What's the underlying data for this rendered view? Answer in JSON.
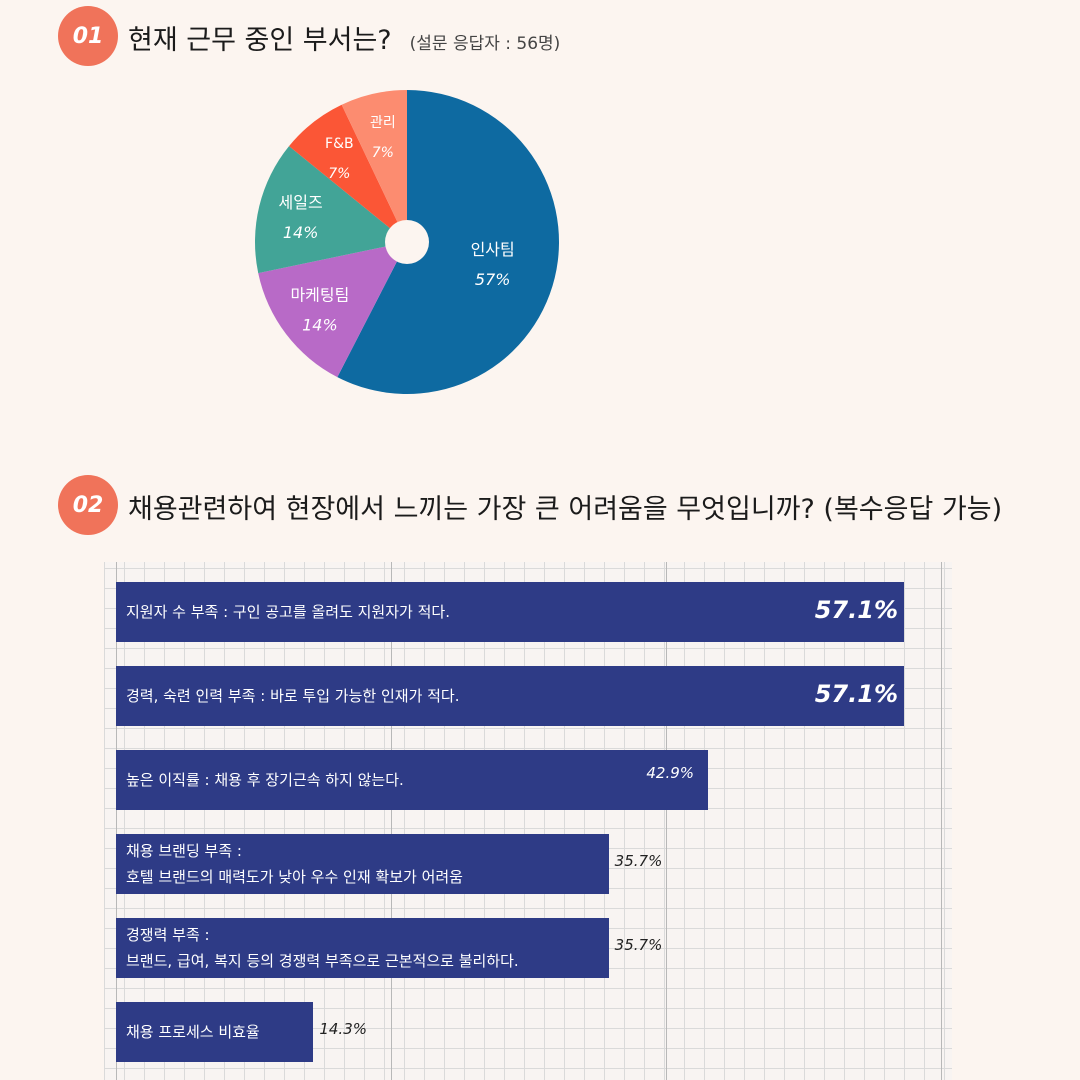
{
  "q1": {
    "badge": "01",
    "title": "현재 근무 중인 부서는?",
    "note": "(설문 응답자 : 56명)"
  },
  "q2": {
    "badge": "02",
    "title": "채용관련하여 현장에서 느끼는 가장 큰 어려움을 무엇입니까? (복수응답 가능)"
  },
  "chart_data": [
    {
      "type": "pie",
      "title": "",
      "slices": [
        {
          "label": "인사팀",
          "value": 57,
          "value_label": "57%",
          "color": "#0e6aa1"
        },
        {
          "label": "마케팅팀",
          "value": 14,
          "value_label": "14%",
          "color": "#b86ac7"
        },
        {
          "label": "세일즈",
          "value": 14,
          "value_label": "14%",
          "color": "#42a497"
        },
        {
          "label": "F&B",
          "value": 7,
          "value_label": "7%",
          "color": "#fb5636"
        },
        {
          "label": "관리",
          "value": 7,
          "value_label": "7%",
          "color": "#fc8c70"
        }
      ],
      "donut_hole": true
    },
    {
      "type": "bar",
      "orientation": "horizontal",
      "title": "",
      "xlim": [
        0,
        100
      ],
      "grid": true,
      "bar_color": "#2e3b86",
      "categories": [
        [
          "지원자 수 부족 : 구인 공고를 올려도 지원자가 적다."
        ],
        [
          "경력, 숙련 인력 부족 : 바로 투입 가능한 인재가 적다."
        ],
        [
          "높은 이직률 : 채용 후 장기근속 하지 않는다."
        ],
        [
          "채용 브랜딩 부족 :",
          "호텔 브랜드의 매력도가 낮아 우수 인재 확보가 어려움"
        ],
        [
          "경쟁력 부족 :",
          "브랜드, 급여, 복지 등의 경쟁력 부족으로 근본적으로 불리하다."
        ],
        [
          "채용 프로세스 비효율"
        ]
      ],
      "values": [
        57.1,
        57.1,
        42.9,
        35.7,
        35.7,
        14.3
      ],
      "value_labels": [
        "57.1%",
        "57.1%",
        "42.9%",
        "35.7%",
        "35.7%",
        "14.3%"
      ]
    }
  ]
}
